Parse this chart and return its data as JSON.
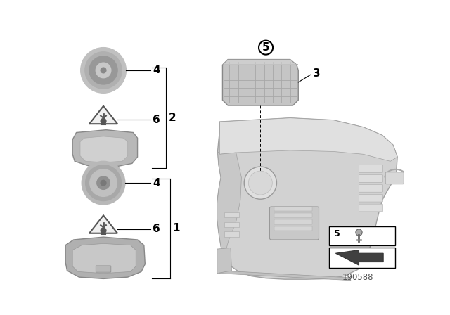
{
  "bg_color": "#ffffff",
  "part_number": "190588",
  "line_color": "#000000",
  "gray_light": "#d4d4d4",
  "gray_mid": "#b8b8b8",
  "gray_dark": "#909090",
  "gray_speaker": "#a8a8a8",
  "gray_bracket": "#b0b0b0",
  "gray_amp": "#c8c8c8",
  "gray_dash": "#d0d0d0"
}
